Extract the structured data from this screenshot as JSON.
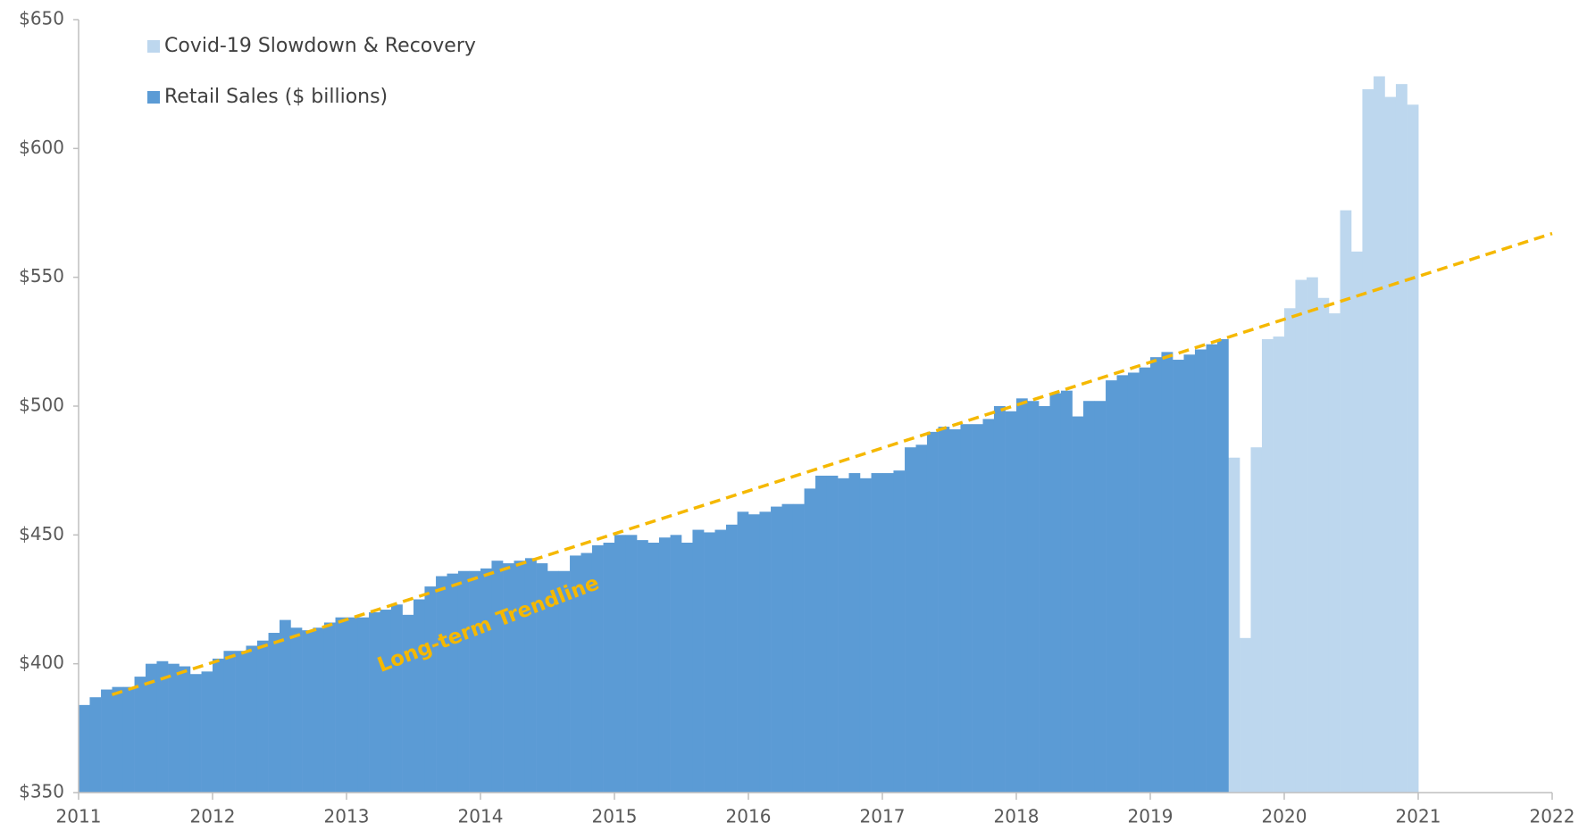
{
  "chart_data": {
    "type": "bar",
    "x": [
      2011,
      2011.083,
      2011.167,
      2011.25,
      2011.333,
      2011.417,
      2011.5,
      2011.583,
      2011.667,
      2011.75,
      2011.833,
      2011.917,
      2012,
      2012.083,
      2012.167,
      2012.25,
      2012.333,
      2012.417,
      2012.5,
      2012.583,
      2012.667,
      2012.75,
      2012.833,
      2012.917,
      2013,
      2013.083,
      2013.167,
      2013.25,
      2013.333,
      2013.417,
      2013.5,
      2013.583,
      2013.667,
      2013.75,
      2013.833,
      2013.917,
      2014,
      2014.083,
      2014.167,
      2014.25,
      2014.333,
      2014.417,
      2014.5,
      2014.583,
      2014.667,
      2014.75,
      2014.833,
      2014.917,
      2015,
      2015.083,
      2015.167,
      2015.25,
      2015.333,
      2015.417,
      2015.5,
      2015.583,
      2015.667,
      2015.75,
      2015.833,
      2015.917,
      2016,
      2016.083,
      2016.167,
      2016.25,
      2016.333,
      2016.417,
      2016.5,
      2016.583,
      2016.667,
      2016.75,
      2016.833,
      2016.917,
      2017,
      2017.083,
      2017.167,
      2017.25,
      2017.333,
      2017.417,
      2017.5,
      2017.583,
      2017.667,
      2017.75,
      2017.833,
      2017.917,
      2018,
      2018.083,
      2018.167,
      2018.25,
      2018.333,
      2018.417,
      2018.5,
      2018.583,
      2018.667,
      2018.75,
      2018.833,
      2018.917,
      2019,
      2019.083,
      2019.167,
      2019.25,
      2019.333,
      2019.417,
      2019.5,
      2019.583,
      2019.667,
      2019.75,
      2019.833,
      2019.917,
      2020,
      2020.083,
      2020.167,
      2020.25,
      2020.333,
      2020.417,
      2020.5,
      2020.583,
      2020.667,
      2020.75,
      2020.833,
      2020.917
    ],
    "series": [
      {
        "name": "Covid-19 Slowdown & Recovery",
        "color": "#bdd7ee",
        "values": [
          null,
          null,
          null,
          null,
          null,
          null,
          null,
          null,
          null,
          null,
          null,
          null,
          null,
          null,
          null,
          null,
          null,
          null,
          null,
          null,
          null,
          null,
          null,
          null,
          null,
          null,
          null,
          null,
          null,
          null,
          null,
          null,
          null,
          null,
          null,
          null,
          null,
          null,
          null,
          null,
          null,
          null,
          null,
          null,
          null,
          null,
          null,
          null,
          null,
          null,
          null,
          null,
          null,
          null,
          null,
          null,
          null,
          null,
          null,
          null,
          null,
          null,
          null,
          null,
          null,
          null,
          null,
          null,
          null,
          null,
          null,
          null,
          null,
          null,
          null,
          null,
          null,
          null,
          null,
          null,
          null,
          null,
          null,
          null,
          null,
          null,
          null,
          null,
          null,
          null,
          null,
          null,
          null,
          null,
          null,
          null,
          null,
          null,
          null,
          null,
          null,
          null,
          null,
          480,
          410,
          484,
          526,
          527,
          538,
          549,
          550,
          542,
          536,
          576,
          560,
          623,
          628,
          620,
          625,
          617
        ]
      },
      {
        "name": "Retail Sales ($ billions)",
        "color": "#5b9bd5",
        "values": [
          384,
          387,
          390,
          391,
          391,
          395,
          400,
          401,
          400,
          399,
          396,
          397,
          402,
          405,
          405,
          407,
          409,
          412,
          417,
          414,
          413,
          414,
          416,
          418,
          418,
          418,
          420,
          421,
          423,
          419,
          425,
          430,
          434,
          435,
          436,
          436,
          437,
          440,
          439,
          440,
          441,
          439,
          436,
          436,
          442,
          443,
          446,
          447,
          450,
          450,
          448,
          447,
          449,
          450,
          447,
          452,
          451,
          452,
          454,
          459,
          458,
          459,
          461,
          462,
          462,
          468,
          473,
          473,
          472,
          474,
          472,
          474,
          474,
          475,
          484,
          485,
          490,
          492,
          491,
          493,
          493,
          495,
          500,
          498,
          503,
          502,
          500,
          505,
          506,
          496,
          502,
          502,
          510,
          512,
          513,
          515,
          519,
          521,
          518,
          520,
          522,
          524,
          526,
          null,
          null,
          null,
          null,
          null,
          null,
          null,
          null,
          null,
          null,
          null,
          null,
          null,
          null,
          null,
          null,
          null
        ]
      }
    ],
    "trendline": {
      "name": "Long-term Trendline",
      "color": "#f5b800",
      "x": [
        2011.25,
        2022
      ],
      "values": [
        388,
        567
      ]
    },
    "xlim": [
      2011,
      2022
    ],
    "xticks": [
      2011,
      2012,
      2013,
      2014,
      2015,
      2016,
      2017,
      2018,
      2019,
      2020,
      2021,
      2022
    ],
    "ylim": [
      350,
      650
    ],
    "yticks": [
      {
        "value": 350,
        "label": "$350"
      },
      {
        "value": 400,
        "label": "$400"
      },
      {
        "value": 450,
        "label": "$450"
      },
      {
        "value": 500,
        "label": "$500"
      },
      {
        "value": 550,
        "label": "$550"
      },
      {
        "value": 600,
        "label": "$600"
      },
      {
        "value": 650,
        "label": "$650"
      }
    ],
    "grid": false,
    "legend": "top-left"
  }
}
